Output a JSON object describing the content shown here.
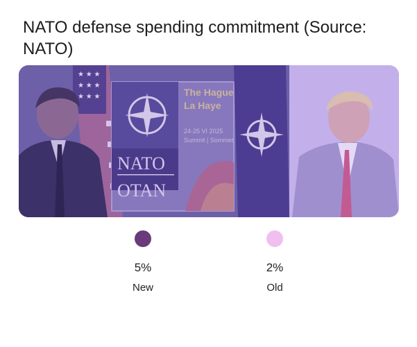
{
  "title": "NATO defense spending commitment (Source: NATO)",
  "photo": {
    "sign_line1": "The Hague",
    "sign_line2": "La Haye",
    "sign_dates": "24-25 VI 2025",
    "sign_summit": "Summit | Sommet",
    "logo_top": "NATO",
    "logo_bottom": "OTAN",
    "overlay_left": "#7b52b8",
    "overlay_right": "#b49ae6"
  },
  "chart_data": {
    "type": "pie",
    "categories": [
      "New",
      "Old"
    ],
    "values": [
      5,
      2
    ],
    "value_labels": [
      "5%",
      "2%"
    ],
    "colors": [
      "#6a3a7a",
      "#f0bff0"
    ],
    "legend_position": "bottom"
  }
}
